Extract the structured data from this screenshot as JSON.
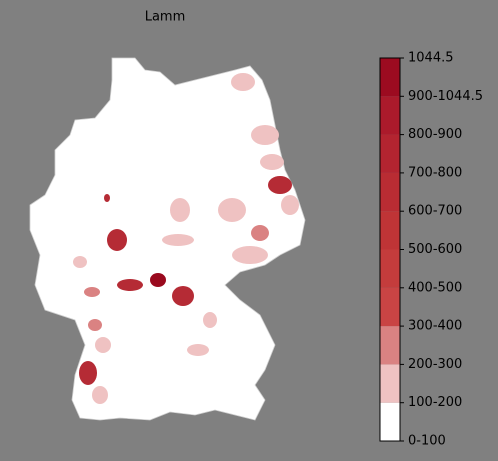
{
  "title": "Lamm",
  "colorbar": {
    "labels": [
      "0-100",
      "100-200",
      "200-300",
      "300-400",
      "400-500",
      "500-600",
      "600-700",
      "700-800",
      "800-900",
      "900-1044.5",
      "1044.5"
    ],
    "colors": [
      "#ffffff",
      "#efc2c2",
      "#da8282",
      "#c94444",
      "#c43c3c",
      "#bf3436",
      "#b92c33",
      "#b32430",
      "#ab1a2b",
      "#9c0b20"
    ]
  }
}
